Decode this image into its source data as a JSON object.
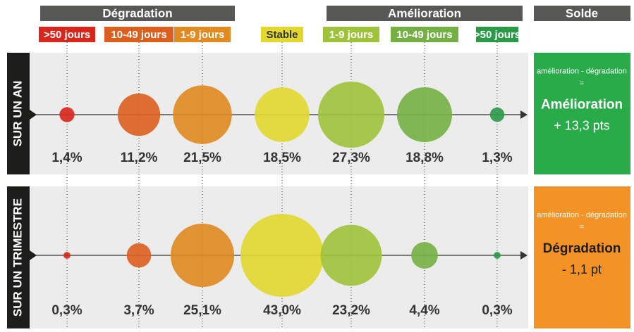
{
  "chart_data": {
    "type": "bubble",
    "groups": [
      "Dégradation",
      "Amélioration"
    ],
    "balance_title": "Solde",
    "categories": [
      ">50 jours",
      "10-49 jours",
      "1-9 jours",
      "Stable",
      "1-9 jours",
      "10-49 jours",
      ">50 jours"
    ],
    "colors": [
      "#d9261c",
      "#dc5f1e",
      "#e08a1f",
      "#e2d830",
      "#9ec33a",
      "#74b043",
      "#2a9a47"
    ],
    "series": [
      {
        "name": "SUR UN AN",
        "values": [
          1.4,
          11.2,
          21.5,
          18.5,
          27.3,
          18.8,
          1.3
        ],
        "value_labels": [
          "1,4%",
          "11,2%",
          "21,5%",
          "18,5%",
          "27,3%",
          "18,8%",
          "1,3%"
        ],
        "balance": {
          "formula": "amélioration - dégradation",
          "equals": "=",
          "result": "Amélioration",
          "points": "+ 13,3 pts",
          "color": "#2aab4a"
        }
      },
      {
        "name": "SUR UN TRIMESTRE",
        "values": [
          0.3,
          3.7,
          25.1,
          43.0,
          23.2,
          4.4,
          0.3
        ],
        "value_labels": [
          "0,3%",
          "3,7%",
          "25,1%",
          "43,0%",
          "23,2%",
          "4,4%",
          "0,3%"
        ],
        "balance": {
          "formula": "amélioration - dégradation",
          "equals": "=",
          "result": "Dégradation",
          "points": "- 1,1 pt",
          "color": "#f39325"
        }
      }
    ]
  }
}
